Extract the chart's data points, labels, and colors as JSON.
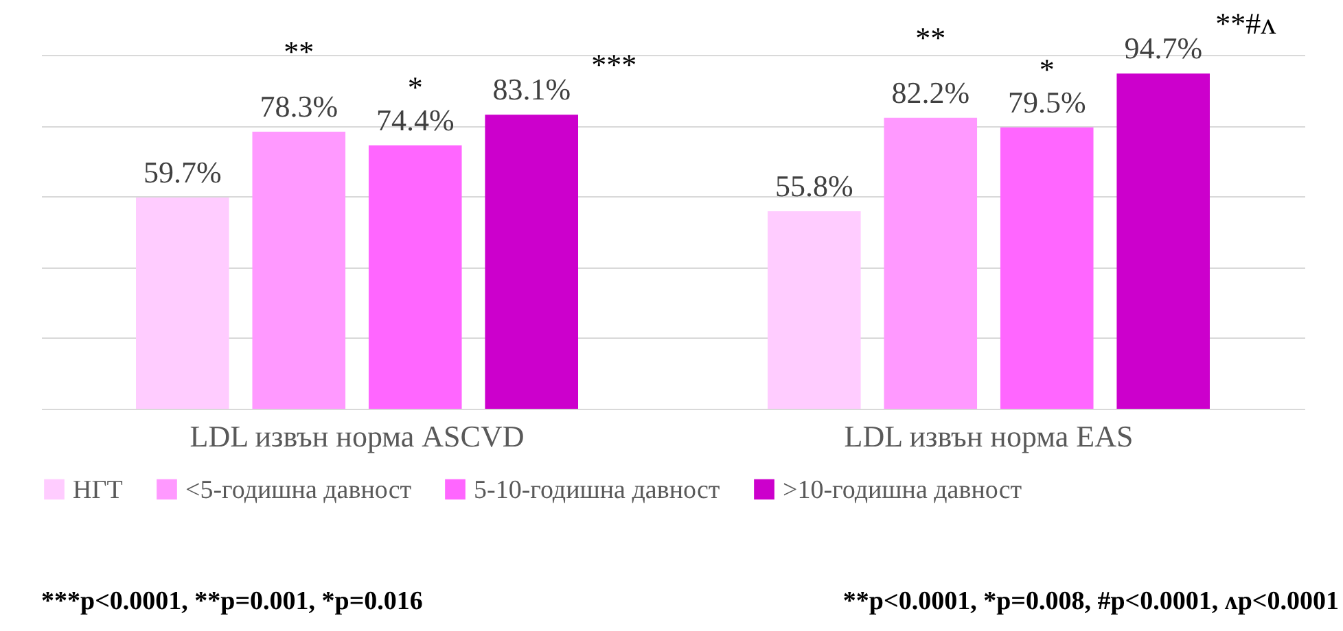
{
  "chart_data": {
    "type": "bar",
    "categories": [
      "LDL извън норма ASCVD",
      "LDL извън норма EAS"
    ],
    "series": [
      {
        "name": "НГТ",
        "color": "#ffccff",
        "values": [
          59.7,
          55.8
        ],
        "value_labels": [
          "59.7%",
          "55.8%"
        ]
      },
      {
        "name": "<5-годишна давност",
        "color": "#ff99ff",
        "values": [
          78.3,
          82.2
        ],
        "value_labels": [
          "78.3%",
          "82.2%"
        ]
      },
      {
        "name": "5-10-годишна давност",
        "color": "#ff66ff",
        "values": [
          74.4,
          79.5
        ],
        "value_labels": [
          "74.4%",
          "79.5%"
        ]
      },
      {
        "name": ">10-годишна давност",
        "color": "#cc00cc",
        "values": [
          83.1,
          94.7
        ],
        "value_labels": [
          "83.1%",
          "94.7%"
        ]
      }
    ],
    "ylim": [
      0,
      100
    ],
    "yticks": [
      0,
      20,
      40,
      60,
      80,
      100
    ],
    "tick_labels": "x",
    "grid": "y",
    "legend": "bottom",
    "annotations": [
      "**",
      "*",
      "***",
      "**",
      "*",
      "**#ʌ",
      "***p<0.0001, **p=0.001, *p=0.016",
      "**p<0.0001, *p=0.008, #p<0.0001, ʌp<0.0001"
    ]
  }
}
